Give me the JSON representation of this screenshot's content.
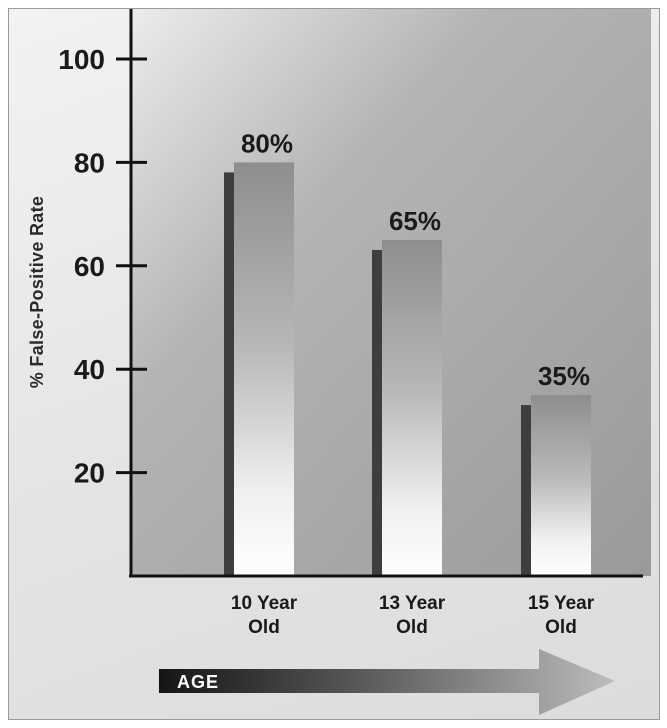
{
  "chart_data": {
    "type": "bar",
    "title": "",
    "ylabel": "% False-Positive Rate",
    "xlabel": "",
    "ylim": [
      0,
      100
    ],
    "yticks": [
      20,
      40,
      60,
      80,
      100
    ],
    "grid": false,
    "categories": [
      "10 Year Old",
      "13 Year Old",
      "15 Year Old"
    ],
    "category_lines": [
      [
        "10 Year",
        "Old"
      ],
      [
        "13 Year",
        "Old"
      ],
      [
        "15 Year",
        "Old"
      ]
    ],
    "values": [
      80,
      65,
      35
    ],
    "value_labels": [
      "80%",
      "65%",
      "35%"
    ]
  },
  "age_arrow": {
    "label": "AGE"
  },
  "colors": {
    "plot_background_top": "#8e8e8e",
    "plot_background_bottom": "#a8a8a8",
    "bar_top": "#8c8c8c",
    "bar_bottom": "#ffffff",
    "bar_shadow": "#3e3e3e",
    "axis": "#111111"
  }
}
